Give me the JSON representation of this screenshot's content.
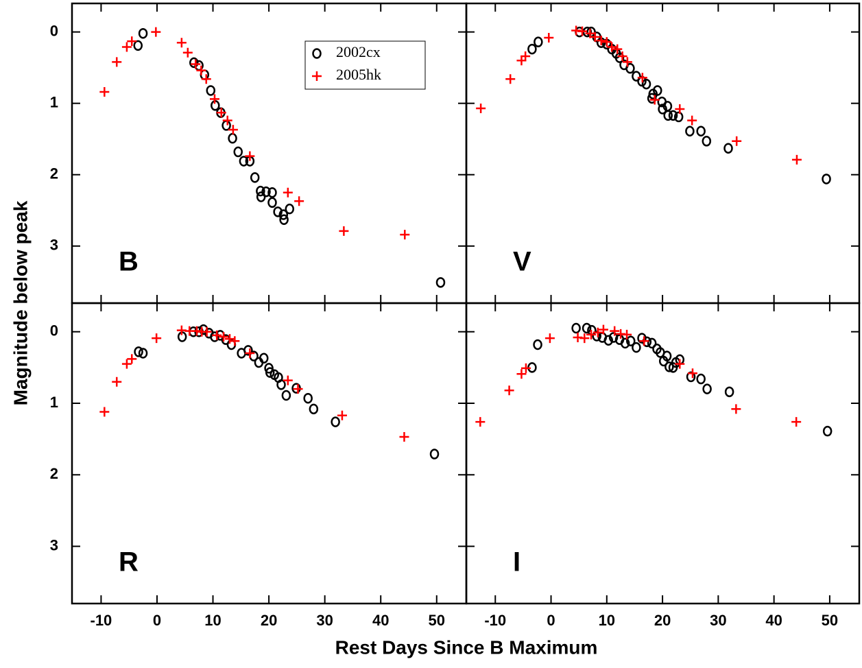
{
  "xlabel": "Rest Days Since B Maximum",
  "ylabel": "Magnitude below peak",
  "chart_data": [
    {
      "type": "scatter",
      "label": "B",
      "xlim": [
        -15.2,
        55.3
      ],
      "ylim": [
        -0.4,
        3.8
      ],
      "y_inverted": true,
      "xticks": [
        -10,
        0,
        10,
        20,
        30,
        40,
        50
      ],
      "yticks": [
        0,
        1,
        2,
        3
      ],
      "legend": "upper right",
      "series": [
        {
          "name": "2002cx",
          "color": "#000000",
          "marker": "circle",
          "x": [
            -3.4,
            -2.5,
            6.6,
            7.5,
            8.5,
            9.6,
            10.4,
            11.4,
            12.4,
            13.5,
            14.5,
            15.5,
            16.6,
            17.5,
            18.5,
            18.6,
            19.5,
            20.6,
            20.6,
            21.6,
            22.6,
            22.7,
            23.7,
            50.7
          ],
          "values": [
            0.19,
            0.02,
            0.43,
            0.47,
            0.6,
            0.82,
            1.03,
            1.13,
            1.31,
            1.49,
            1.68,
            1.81,
            1.81,
            2.04,
            2.23,
            2.31,
            2.24,
            2.25,
            2.39,
            2.52,
            2.56,
            2.63,
            2.48,
            3.51
          ]
        },
        {
          "name": "2005hk",
          "color": "#ff0000",
          "marker": "plus",
          "x": [
            -9.4,
            -7.2,
            -5.4,
            -4.5,
            -0.2,
            4.4,
            5.5,
            6.9,
            7.9,
            8.8,
            10.3,
            11.5,
            12.6,
            13.6,
            16.6,
            23.4,
            25.4,
            33.4,
            44.3
          ],
          "values": [
            0.84,
            0.42,
            0.21,
            0.13,
            0.0,
            0.15,
            0.29,
            0.45,
            0.54,
            0.66,
            0.94,
            1.13,
            1.24,
            1.37,
            1.74,
            2.25,
            2.37,
            2.79,
            2.84
          ]
        }
      ]
    },
    {
      "type": "scatter",
      "label": "V",
      "xlim": [
        -15.2,
        55.3
      ],
      "ylim": [
        -0.4,
        3.8
      ],
      "y_inverted": true,
      "xticks": [
        -10,
        0,
        10,
        20,
        30,
        40,
        50
      ],
      "yticks": [
        0,
        1,
        2,
        3
      ],
      "series": [
        {
          "name": "2002cx",
          "color": "#000000",
          "marker": "circle",
          "x": [
            -3.4,
            -2.3,
            5.1,
            6.5,
            7.2,
            8.2,
            9.0,
            10.0,
            10.9,
            11.7,
            12.3,
            13.1,
            14.2,
            15.3,
            16.3,
            17.1,
            18.1,
            18.3,
            19.1,
            19.9,
            20.0,
            20.9,
            21.0,
            21.9,
            22.9,
            24.9,
            26.9,
            27.9,
            31.8,
            49.4
          ],
          "values": [
            0.24,
            0.14,
            0.0,
            0.0,
            0.0,
            0.07,
            0.15,
            0.17,
            0.24,
            0.3,
            0.36,
            0.46,
            0.51,
            0.62,
            0.69,
            0.73,
            0.93,
            0.87,
            0.82,
            0.98,
            1.08,
            1.04,
            1.17,
            1.17,
            1.19,
            1.39,
            1.39,
            1.53,
            1.63,
            2.06
          ]
        },
        {
          "name": "2005hk",
          "color": "#ff0000",
          "marker": "plus",
          "x": [
            -12.6,
            -7.3,
            -5.3,
            -4.6,
            -0.4,
            4.5,
            5.6,
            7.0,
            7.9,
            9.0,
            10.0,
            10.9,
            11.9,
            12.8,
            13.7,
            16.4,
            18.6,
            23.1,
            25.3,
            33.3,
            44.1
          ],
          "values": [
            1.07,
            0.66,
            0.4,
            0.34,
            0.08,
            -0.02,
            -0.01,
            0.02,
            0.07,
            0.12,
            0.14,
            0.21,
            0.24,
            0.34,
            0.42,
            0.64,
            0.95,
            1.08,
            1.24,
            1.53,
            1.79
          ]
        }
      ]
    },
    {
      "type": "scatter",
      "label": "R",
      "xlim": [
        -15.2,
        55.3
      ],
      "ylim": [
        -0.4,
        3.8
      ],
      "y_inverted": true,
      "xticks": [
        -10,
        0,
        10,
        20,
        30,
        40,
        50
      ],
      "yticks": [
        0,
        1,
        2,
        3
      ],
      "series": [
        {
          "name": "2002cx",
          "color": "#000000",
          "marker": "circle",
          "x": [
            -3.3,
            -2.5,
            4.5,
            6.5,
            7.5,
            8.3,
            9.3,
            10.3,
            11.3,
            12.3,
            13.3,
            15.1,
            16.3,
            17.3,
            18.2,
            19.1,
            20.0,
            20.2,
            21.0,
            21.7,
            22.2,
            23.1,
            24.9,
            27.0,
            28.0,
            31.9,
            49.6
          ],
          "values": [
            0.28,
            0.3,
            0.07,
            0.0,
            0.0,
            -0.03,
            0.02,
            0.07,
            0.05,
            0.11,
            0.18,
            0.3,
            0.26,
            0.34,
            0.43,
            0.37,
            0.51,
            0.57,
            0.6,
            0.64,
            0.74,
            0.89,
            0.79,
            0.93,
            1.08,
            1.26,
            1.71
          ]
        },
        {
          "name": "2005hk",
          "color": "#ff0000",
          "marker": "plus",
          "x": [
            -9.4,
            -7.2,
            -5.4,
            -4.5,
            -0.1,
            4.4,
            5.8,
            7.1,
            8.0,
            8.9,
            10.7,
            11.9,
            13.0,
            13.9,
            16.6,
            23.4,
            25.2,
            33.1,
            44.2
          ],
          "values": [
            1.12,
            0.7,
            0.45,
            0.38,
            0.09,
            -0.02,
            -0.01,
            -0.01,
            0.0,
            0.0,
            0.05,
            0.07,
            0.1,
            0.13,
            0.3,
            0.68,
            0.8,
            1.17,
            1.47
          ]
        }
      ]
    },
    {
      "type": "scatter",
      "label": "I",
      "xlim": [
        -15.2,
        55.3
      ],
      "ylim": [
        -0.4,
        3.8
      ],
      "y_inverted": true,
      "xticks": [
        -10,
        0,
        10,
        20,
        30,
        40,
        50
      ],
      "yticks": [
        0,
        1,
        2,
        3
      ],
      "series": [
        {
          "name": "2002cx",
          "color": "#000000",
          "marker": "circle",
          "x": [
            -3.4,
            -2.4,
            4.5,
            6.4,
            7.3,
            8.2,
            9.2,
            10.3,
            11.2,
            12.3,
            13.3,
            14.3,
            15.3,
            16.3,
            17.2,
            18.1,
            19.0,
            19.6,
            20.2,
            20.8,
            21.2,
            21.9,
            22.4,
            23.1,
            25.1,
            26.9,
            28.0,
            32.0,
            49.6
          ],
          "values": [
            0.5,
            0.18,
            -0.05,
            -0.05,
            -0.02,
            0.06,
            0.08,
            0.12,
            0.08,
            0.11,
            0.16,
            0.13,
            0.22,
            0.09,
            0.14,
            0.16,
            0.24,
            0.29,
            0.41,
            0.34,
            0.49,
            0.5,
            0.43,
            0.39,
            0.63,
            0.66,
            0.8,
            0.84,
            1.39
          ]
        },
        {
          "name": "2005hk",
          "color": "#ff0000",
          "marker": "plus",
          "x": [
            -12.7,
            -7.5,
            -5.3,
            -4.5,
            -0.2,
            4.8,
            6.0,
            7.2,
            8.4,
            9.4,
            11.4,
            12.5,
            13.6,
            16.7,
            23.1,
            25.4,
            33.2,
            44.0
          ],
          "values": [
            1.26,
            0.82,
            0.59,
            0.51,
            0.09,
            0.08,
            0.09,
            0.04,
            0.01,
            -0.03,
            -0.01,
            0.03,
            0.04,
            0.13,
            0.45,
            0.58,
            1.08,
            1.26
          ]
        }
      ]
    }
  ]
}
